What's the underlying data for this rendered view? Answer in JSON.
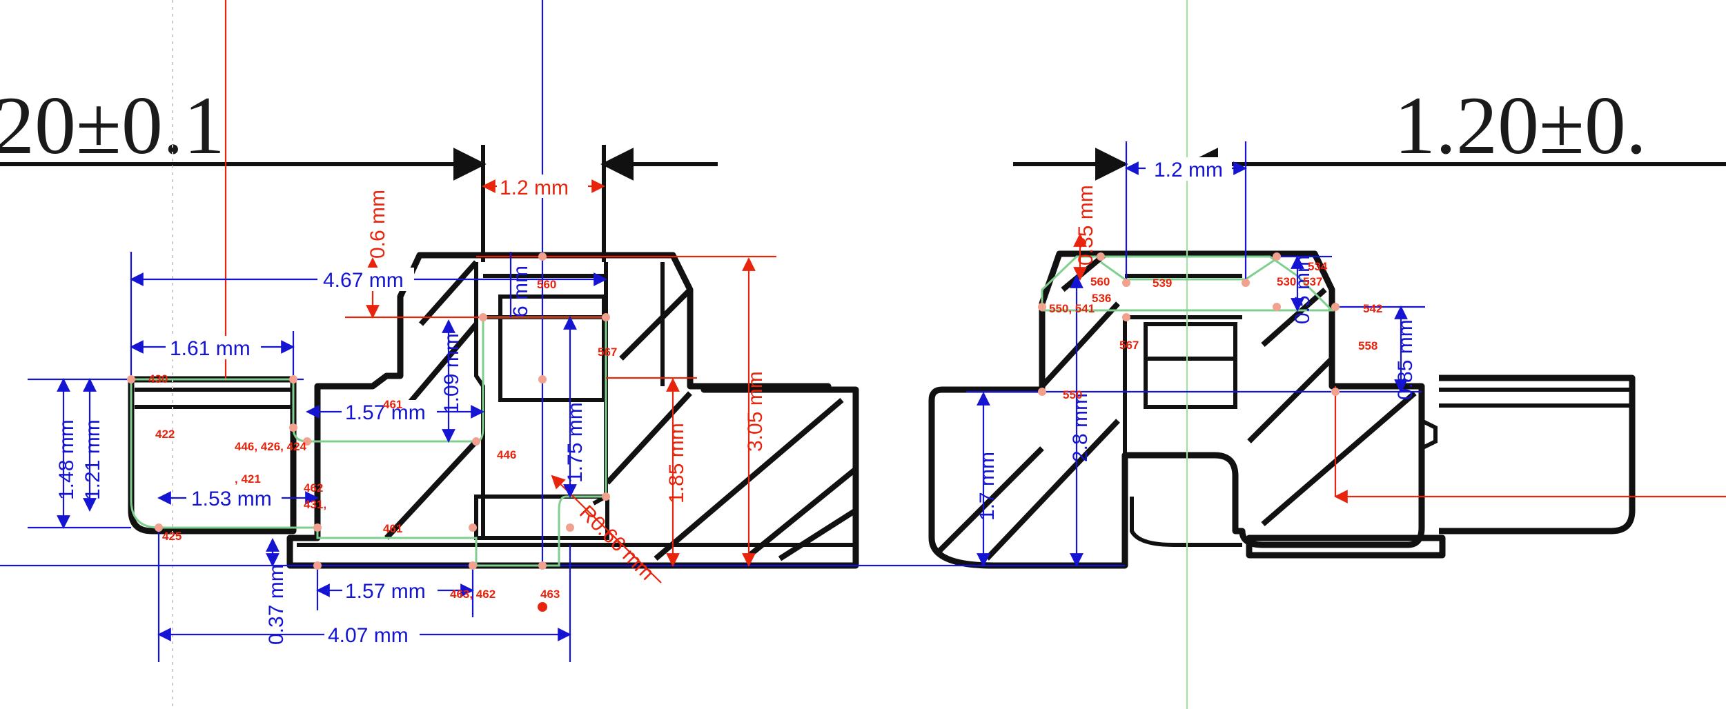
{
  "reference_labels": {
    "left": ".20±0.1",
    "right": "1.20±0."
  },
  "dimensions": {
    "top_gap_left": "1.2 mm",
    "top_gap_right": "1.2 mm",
    "d_4_67": "4.67 mm",
    "d_1_61": "1.61 mm",
    "d_1_57_top": "1.57 mm",
    "d_1_53": "1.53 mm",
    "d_1_57_bottom": "1.57 mm",
    "d_4_07": "4.07 mm",
    "d_1_48": "1.48 mm",
    "d_1_21": "1.21 mm",
    "d_0_6": "0.6 mm",
    "d_0_6b": "6 mm",
    "d_1_09": "1.09 mm",
    "d_1_75": "1.75 mm",
    "d_1_85": "1.85 mm",
    "d_3_05": "3.05 mm",
    "d_0_37": "0.37 mm",
    "d_r0_66": "R0.66 mm",
    "d_0_35": "0.35 mm",
    "d_0_5": "0.5 mm",
    "d_0_85": "0.85 mm",
    "d_1_7": "1.7 mm",
    "d_2_8": "2.8 mm"
  },
  "tags": {
    "t430": "430",
    "t422": "422",
    "t446a": "446, 426, 424",
    "t421": ", 421",
    "t462a": "462",
    "t431": "431,",
    "t425": "425",
    "t461a": "461",
    "t461b": "461",
    "t446b": "446",
    "t463a": "463, 462",
    "t463b": "463",
    "t560": "560",
    "t567a": "567",
    "t560r": "560",
    "t536": "536",
    "t539": "539",
    "t550": "550, 541",
    "t530": "530",
    "t537": "537",
    "t534": "534",
    "t542": "542",
    "t558": "558",
    "t567b": "567",
    "t550b": "550"
  },
  "colors": {
    "drawing_lines": "#111111",
    "red_dimension": "#e8240c",
    "blue_dimension": "#1414d2",
    "green_outline": "#7fcf8f"
  }
}
